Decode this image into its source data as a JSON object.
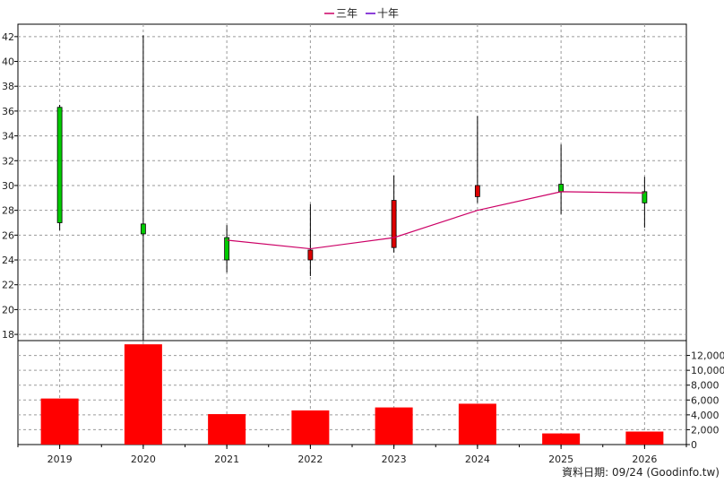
{
  "chart_data": {
    "type": "candlestick+bar",
    "legend": [
      {
        "label": "三年",
        "color": "#cc0066"
      },
      {
        "label": "十年",
        "color": "#6600cc"
      }
    ],
    "categories": [
      "2019",
      "2020",
      "2021",
      "2022",
      "2023",
      "2024",
      "2025",
      "2026"
    ],
    "price": {
      "ylim": [
        17.5,
        43
      ],
      "ticks": [
        18,
        20,
        22,
        24,
        26,
        28,
        30,
        32,
        34,
        36,
        38,
        40,
        42
      ],
      "candles": [
        {
          "open": 27.0,
          "close": 36.3,
          "high": 36.5,
          "low": 26.4,
          "color": "#00cc00"
        },
        {
          "open": 26.1,
          "close": 26.9,
          "high": 42.1,
          "low": 17.5,
          "color": "#00cc00"
        },
        {
          "open": 24.0,
          "close": 25.8,
          "high": 26.8,
          "low": 23.0,
          "color": "#00cc00"
        },
        {
          "open": 24.8,
          "close": 24.0,
          "high": 28.5,
          "low": 22.7,
          "color": "#dd0000"
        },
        {
          "open": 28.8,
          "close": 25.0,
          "high": 30.8,
          "low": 24.6,
          "color": "#dd0000"
        },
        {
          "open": 30.0,
          "close": 29.1,
          "high": 35.6,
          "low": 28.6,
          "color": "#dd0000"
        },
        {
          "open": 29.5,
          "close": 30.1,
          "high": 33.3,
          "low": 27.7,
          "color": "#00cc00"
        },
        {
          "open": 28.6,
          "close": 29.5,
          "high": 30.7,
          "low": 26.6,
          "color": "#00cc00"
        }
      ],
      "series": [
        {
          "name": "三年",
          "color": "#cc0066",
          "values": [
            null,
            null,
            25.6,
            24.9,
            25.8,
            28.0,
            29.5,
            29.4
          ]
        }
      ]
    },
    "volume": {
      "ylim": [
        0,
        14000
      ],
      "ticks": [
        0,
        2000,
        4000,
        6000,
        8000,
        10000,
        12000
      ],
      "tick_labels": [
        "0",
        "2,000",
        "4,000",
        "6,000",
        "8,000",
        "10,000",
        "12,000"
      ],
      "values": [
        6200,
        13500,
        4100,
        4600,
        5000,
        5500,
        1500,
        1750
      ],
      "color": "#ff0000"
    },
    "grid": true
  },
  "footer": "資料日期: 09/24  (Goodinfo.tw)"
}
